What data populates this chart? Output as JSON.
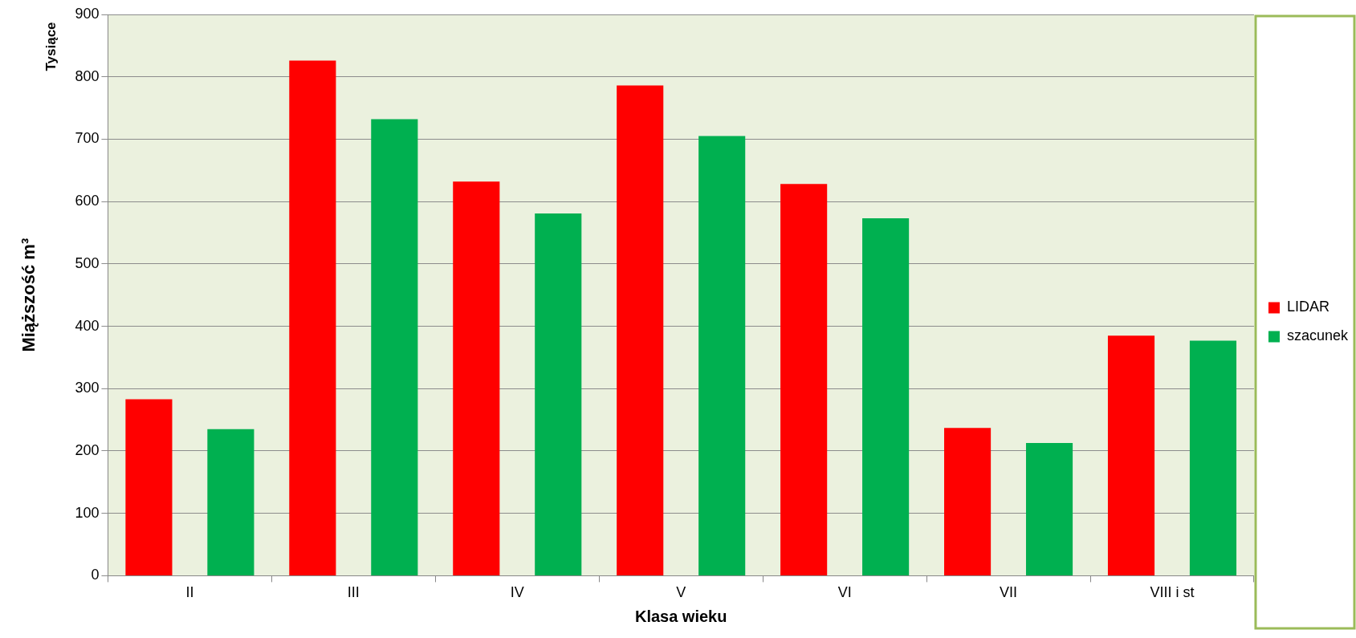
{
  "chart_data": {
    "type": "bar",
    "xlabel": "Klasa wieku",
    "ylabel": "Miąższość m³",
    "annotations": [
      "Tysiące"
    ],
    "categories": [
      "II",
      "III",
      "IV",
      "V",
      "VI",
      "VII",
      "VIII i st"
    ],
    "series": [
      {
        "name": "LIDAR",
        "color": "#ff0000",
        "values": [
          283,
          826,
          632,
          786,
          628,
          237,
          385
        ]
      },
      {
        "name": "szacunek",
        "color": "#00b050",
        "values": [
          235,
          732,
          581,
          705,
          573,
          213,
          377
        ]
      }
    ],
    "ylim": [
      0,
      900
    ],
    "yticks": [
      0,
      100,
      200,
      300,
      400,
      500,
      600,
      700,
      800,
      900
    ],
    "grid": "y",
    "legend": "right"
  }
}
